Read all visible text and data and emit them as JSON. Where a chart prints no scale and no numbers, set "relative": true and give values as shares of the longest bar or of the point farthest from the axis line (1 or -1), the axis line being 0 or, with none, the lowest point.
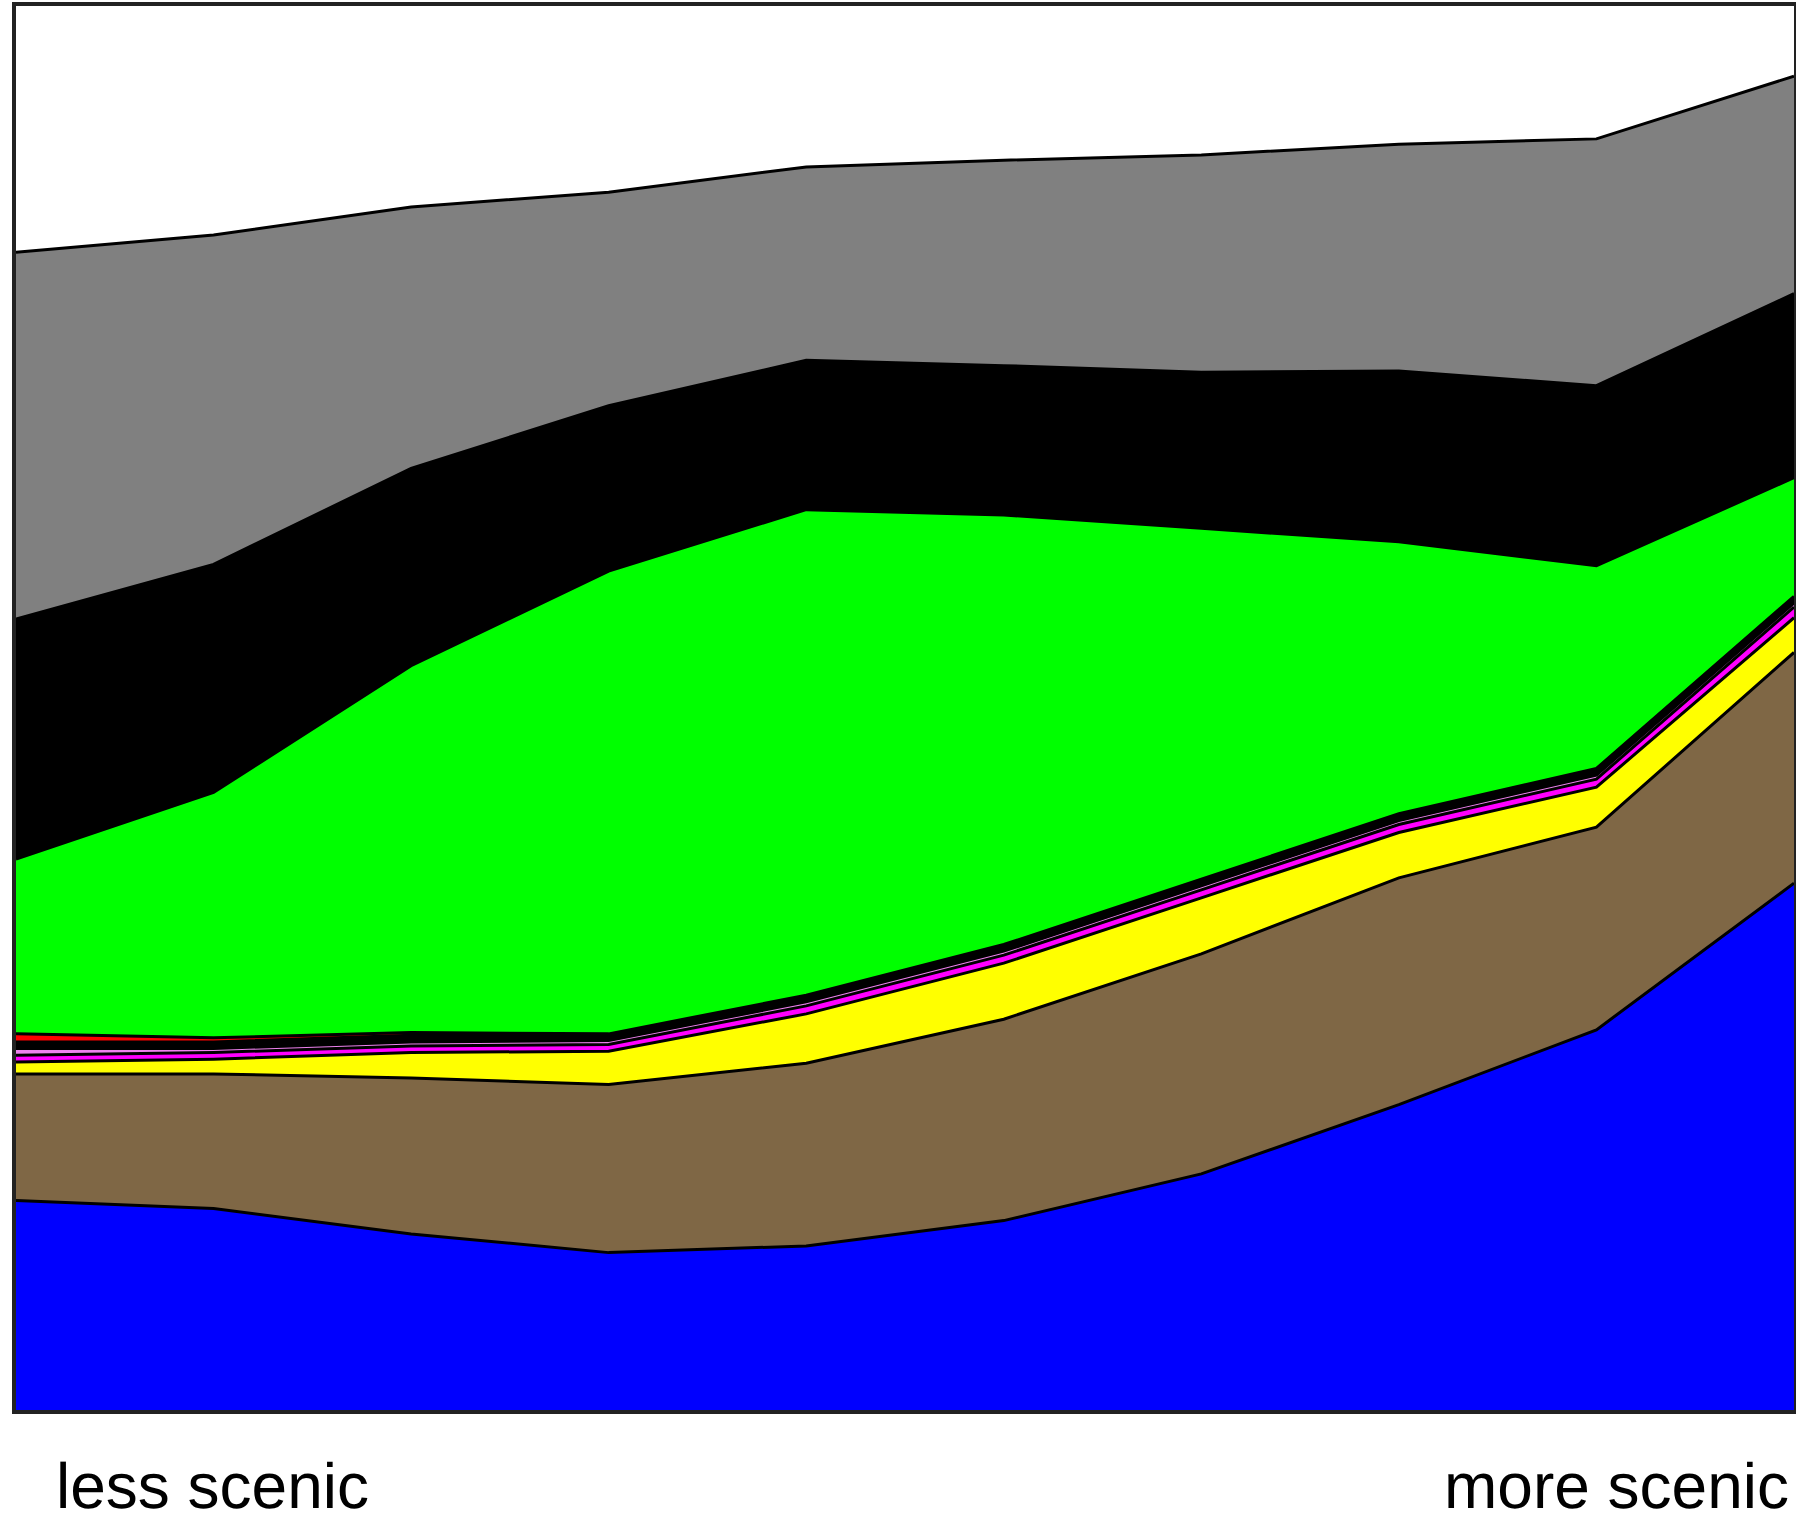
{
  "chart_data": {
    "type": "area",
    "relative": true,
    "stacked": true,
    "categories": [
      null,
      null,
      null,
      null,
      null,
      null,
      null,
      null,
      null,
      null
    ],
    "series": [
      {
        "color": "#0000ff",
        "values": [
          0.157,
          0.151,
          0.132,
          0.118,
          0.123,
          0.142,
          0.177,
          0.229,
          0.285,
          0.395
        ]
      },
      {
        "color": "#7f6745",
        "values": [
          0.095,
          0.101,
          0.117,
          0.126,
          0.137,
          0.151,
          0.165,
          0.17,
          0.152,
          0.173
        ]
      },
      {
        "color": "#ffff00",
        "values": [
          0.009,
          0.011,
          0.019,
          0.025,
          0.037,
          0.042,
          0.042,
          0.034,
          0.03,
          0.026
        ]
      },
      {
        "color": "#ff00ff",
        "values": [
          0.005,
          0.005,
          0.005,
          0.005,
          0.006,
          0.006,
          0.006,
          0.006,
          0.006,
          0.008
        ]
      },
      {
        "color": "#ee82ee",
        "values": [
          0.005,
          0.003,
          0.003,
          0.003,
          0.003,
          0.003,
          0.003,
          0.003,
          0.003,
          0.003
        ]
      },
      {
        "color": "#000000",
        "values": [
          0.005,
          0.005,
          0.005,
          0.005,
          0.005,
          0.005,
          0.005,
          0.005,
          0.005,
          0.005
        ]
      },
      {
        "color": "#ff0000",
        "values": [
          0.006,
          0.003,
          0.002,
          0,
          0,
          0,
          0,
          0,
          0,
          0
        ]
      },
      {
        "color": "#00ff00",
        "values": [
          0.131,
          0.184,
          0.275,
          0.347,
          0.364,
          0.322,
          0.263,
          0.204,
          0.152,
          0.089
        ]
      },
      {
        "color": "#000000",
        "values": [
          0.18,
          0.171,
          0.148,
          0.124,
          0.112,
          0.112,
          0.117,
          0.128,
          0.135,
          0.138
        ]
      },
      {
        "color": "#808080",
        "values": [
          0.275,
          0.247,
          0.196,
          0.16,
          0.145,
          0.154,
          0.163,
          0.17,
          0.185,
          0.163
        ]
      }
    ],
    "annotations": [
      "less scenic",
      "more scenic"
    ]
  }
}
